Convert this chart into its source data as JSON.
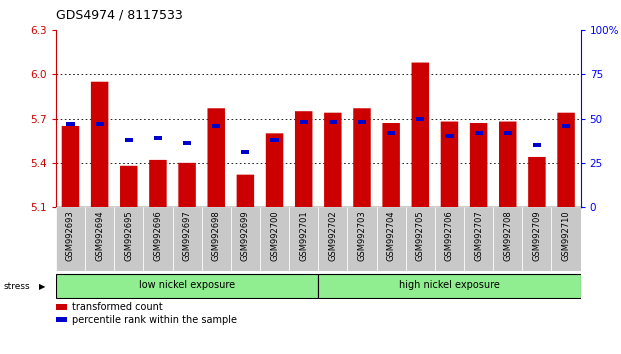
{
  "title": "GDS4974 / 8117533",
  "samples": [
    "GSM992693",
    "GSM992694",
    "GSM992695",
    "GSM992696",
    "GSM992697",
    "GSM992698",
    "GSM992699",
    "GSM992700",
    "GSM992701",
    "GSM992702",
    "GSM992703",
    "GSM992704",
    "GSM992705",
    "GSM992706",
    "GSM992707",
    "GSM992708",
    "GSM992709",
    "GSM992710"
  ],
  "red_values": [
    5.65,
    5.95,
    5.38,
    5.42,
    5.4,
    5.77,
    5.32,
    5.6,
    5.75,
    5.74,
    5.77,
    5.67,
    6.08,
    5.68,
    5.67,
    5.68,
    5.44,
    5.74
  ],
  "blue_percentile": [
    47,
    47,
    38,
    39,
    36,
    46,
    31,
    38,
    48,
    48,
    48,
    42,
    50,
    40,
    42,
    42,
    35,
    46
  ],
  "y_min": 5.1,
  "y_max": 6.3,
  "y_ticks": [
    5.1,
    5.4,
    5.7,
    6.0,
    6.3
  ],
  "right_y_ticks": [
    0,
    25,
    50,
    75,
    100
  ],
  "right_y_labels": [
    "0",
    "25",
    "50",
    "75",
    "100%"
  ],
  "bar_color": "#CC0000",
  "blue_color": "#0000CC",
  "bar_bottom": 5.1,
  "group1_label": "low nickel exposure",
  "group2_label": "high nickel exposure",
  "group1_count": 9,
  "stress_label": "stress",
  "legend_red": "transformed count",
  "legend_blue": "percentile rank within the sample",
  "bg_color": "#FFFFFF",
  "tick_bg": "#C8C8C8",
  "group_bg": "#90EE90",
  "dotted_lines": [
    5.4,
    5.7,
    6.0
  ]
}
